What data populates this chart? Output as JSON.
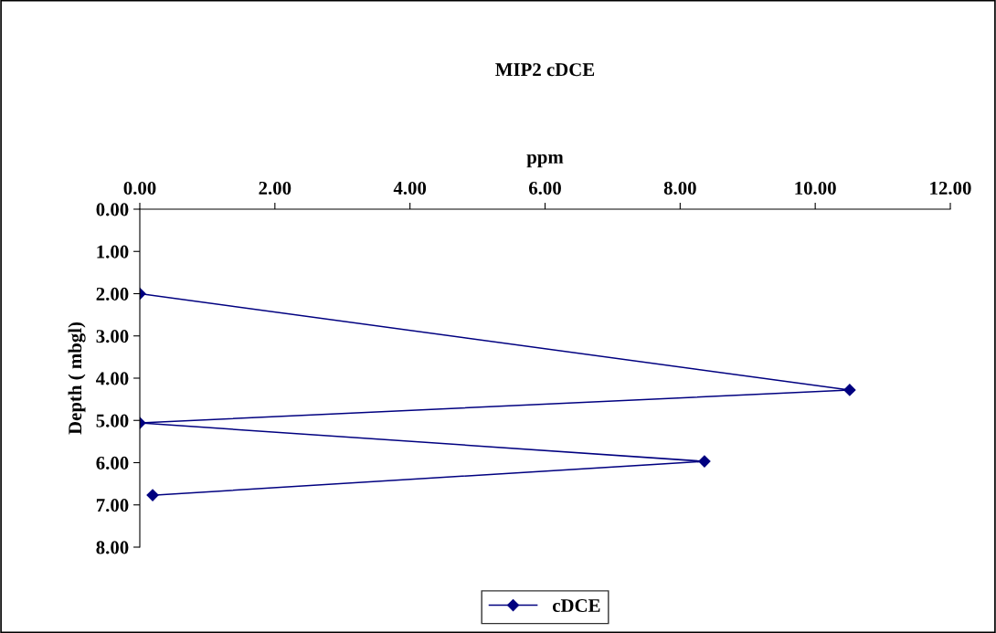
{
  "chart_data": {
    "type": "line",
    "title": "MIP2 cDCE",
    "xlabel": "ppm",
    "ylabel": "Depth ( mbgl)",
    "series": [
      {
        "name": "cDCE",
        "color": "#000080",
        "x": [
          0.0,
          10.51,
          0.0,
          8.36,
          0.19
        ],
        "values": [
          2.0,
          4.28,
          5.06,
          5.97,
          6.77
        ]
      }
    ],
    "xlim": [
      0,
      12
    ],
    "xticks": [
      {
        "value": 0,
        "label": "0.00"
      },
      {
        "value": 2,
        "label": "2.00"
      },
      {
        "value": 4,
        "label": "4.00"
      },
      {
        "value": 6,
        "label": "6.00"
      },
      {
        "value": 8,
        "label": "8.00"
      },
      {
        "value": 10,
        "label": "10.00"
      },
      {
        "value": 12,
        "label": "12.00"
      }
    ],
    "ylim": [
      8,
      0
    ],
    "yticks": [
      {
        "value": 0,
        "label": "0.00"
      },
      {
        "value": 1,
        "label": "1.00"
      },
      {
        "value": 2,
        "label": "2.00"
      },
      {
        "value": 3,
        "label": "3.00"
      },
      {
        "value": 4,
        "label": "4.00"
      },
      {
        "value": 5,
        "label": "5.00"
      },
      {
        "value": 6,
        "label": "6.00"
      },
      {
        "value": 7,
        "label": "7.00"
      },
      {
        "value": 8,
        "label": "8.00"
      }
    ],
    "grid": false,
    "legend": "bottom",
    "marker": "diamond",
    "line_style": "solid"
  }
}
